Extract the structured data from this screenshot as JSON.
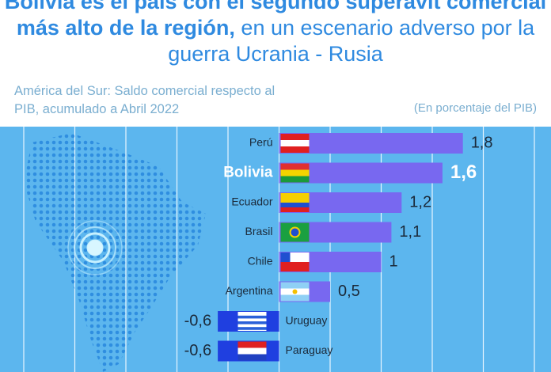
{
  "chart_data": {
    "type": "bar",
    "orientation": "horizontal",
    "title_bold": "Bolivia es el país con el segundo superávit comercial más alto de la región,",
    "title_rest": "en un escenario adverso por la guerra Ucrania - Rusia",
    "subtitle": "América del Sur: Saldo comercial respecto al PIB, acumulado a Abril 2022",
    "unit": "(En porcentaje del PIB)",
    "categories": [
      "Perú",
      "Bolivia",
      "Ecuador",
      "Brasil",
      "Chile",
      "Argentina",
      "Uruguay",
      "Paraguay"
    ],
    "values": [
      1.8,
      1.6,
      1.2,
      1.1,
      1,
      0.5,
      -0.6,
      -0.6
    ],
    "value_labels": [
      "1,8",
      "1,6",
      "1,2",
      "1,1",
      "1",
      "0,5",
      "-0,6",
      "-0,6"
    ],
    "color": "#7868f0",
    "negative_color": "#1f3fe0",
    "xlim": [
      -2.5,
      2.5
    ],
    "xticks": [
      -2.5,
      -2,
      -1.5,
      -1,
      -0.5,
      0,
      0.5,
      1,
      1.5,
      2,
      2.5
    ],
    "grid": true
  }
}
